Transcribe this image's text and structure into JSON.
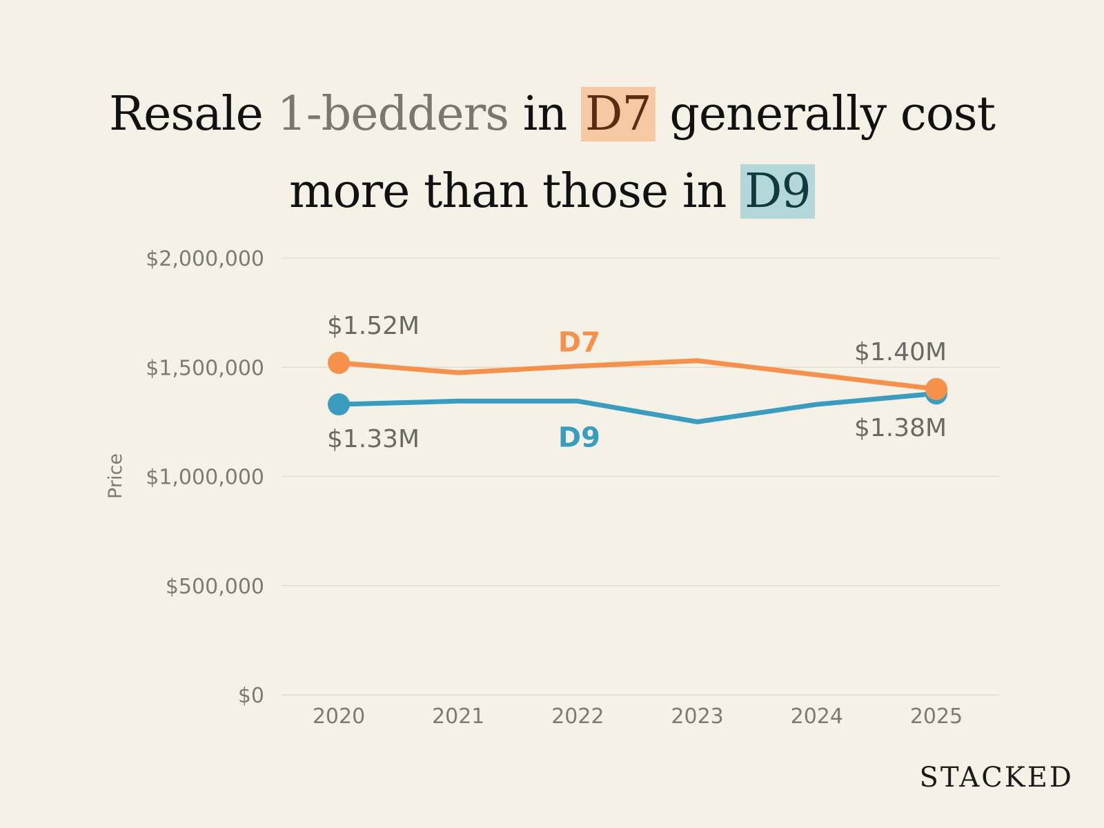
{
  "title": {
    "line1_a": "Resale",
    "line1_b": "1-bedders",
    "line1_c": "in",
    "line1_d": "D7",
    "line1_e": "generally cost",
    "line2_a": "more than those in",
    "line2_b": "D9"
  },
  "brand": "STACKED",
  "colors": {
    "d7": "#f5914a",
    "d9": "#3a9dc0",
    "grid": "#e2dccf",
    "tick": "#7c7a74",
    "label": "#6b6965"
  },
  "chart_data": {
    "type": "line",
    "title": "Resale 1-bedders in D7 generally cost more than those in D9",
    "xlabel": "",
    "ylabel": "Price",
    "x": [
      "2020",
      "2021",
      "2022",
      "2023",
      "2024",
      "2025"
    ],
    "ylim": [
      0,
      2000000
    ],
    "yticks": [
      0,
      500000,
      1000000,
      1500000,
      2000000
    ],
    "ytick_labels": [
      "$0",
      "$500,000",
      "$1,000,000",
      "$1,500,000",
      "$2,000,000"
    ],
    "series": [
      {
        "name": "D7",
        "color": "#f5914a",
        "values": [
          1520000,
          1475000,
          1505000,
          1530000,
          1465000,
          1400000
        ]
      },
      {
        "name": "D9",
        "color": "#3a9dc0",
        "values": [
          1330000,
          1345000,
          1345000,
          1250000,
          1330000,
          1380000
        ]
      }
    ],
    "annotations": [
      {
        "series": "D7",
        "index": 0,
        "text": "$1.52M",
        "position": "above"
      },
      {
        "series": "D7",
        "index": 5,
        "text": "$1.40M",
        "position": "above"
      },
      {
        "series": "D9",
        "index": 0,
        "text": "$1.33M",
        "position": "below"
      },
      {
        "series": "D9",
        "index": 5,
        "text": "$1.38M",
        "position": "below"
      }
    ],
    "series_labels": [
      {
        "series": "D7",
        "text": "D7",
        "index": 2,
        "position": "above"
      },
      {
        "series": "D9",
        "text": "D9",
        "index": 2,
        "position": "below"
      }
    ],
    "grid": true
  }
}
